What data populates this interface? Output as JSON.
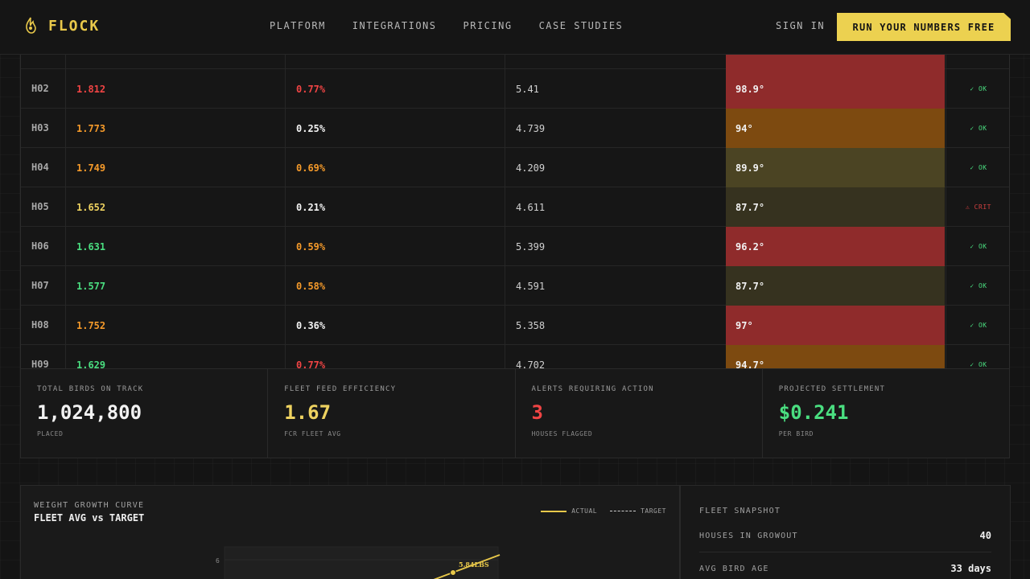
{
  "brand": {
    "name": "FLOCK",
    "accent": "#e8c84a"
  },
  "nav": {
    "links": [
      "PLATFORM",
      "INTEGRATIONS",
      "PRICING",
      "CASE STUDIES"
    ],
    "sign_in": "SIGN IN",
    "cta": "RUN YOUR NUMBERS FREE"
  },
  "houses": [
    {
      "id": "H02",
      "fcr": "1.812",
      "fcr_tone": "red",
      "mortality": "0.77%",
      "mort_tone": "red",
      "weight": "5.41",
      "temp": "98.9°",
      "temp_tone": "red",
      "status": "✓ OK",
      "status_tone": "ok"
    },
    {
      "id": "H03",
      "fcr": "1.773",
      "fcr_tone": "orange",
      "mortality": "0.25%",
      "mort_tone": "white",
      "weight": "4.739",
      "temp": "94°",
      "temp_tone": "orange",
      "status": "✓ OK",
      "status_tone": "ok"
    },
    {
      "id": "H04",
      "fcr": "1.749",
      "fcr_tone": "orange",
      "mortality": "0.69%",
      "mort_tone": "orange",
      "weight": "4.209",
      "temp": "89.9°",
      "temp_tone": "olive",
      "status": "✓ OK",
      "status_tone": "ok"
    },
    {
      "id": "H05",
      "fcr": "1.652",
      "fcr_tone": "yellow",
      "mortality": "0.21%",
      "mort_tone": "white",
      "weight": "4.611",
      "temp": "87.7°",
      "temp_tone": "dark",
      "status": "⚠ CRIT",
      "status_tone": "crit"
    },
    {
      "id": "H06",
      "fcr": "1.631",
      "fcr_tone": "green",
      "mortality": "0.59%",
      "mort_tone": "orange",
      "weight": "5.399",
      "temp": "96.2°",
      "temp_tone": "red",
      "status": "✓ OK",
      "status_tone": "ok"
    },
    {
      "id": "H07",
      "fcr": "1.577",
      "fcr_tone": "green",
      "mortality": "0.58%",
      "mort_tone": "orange",
      "weight": "4.591",
      "temp": "87.7°",
      "temp_tone": "dark",
      "status": "✓ OK",
      "status_tone": "ok"
    },
    {
      "id": "H08",
      "fcr": "1.752",
      "fcr_tone": "orange",
      "mortality": "0.36%",
      "mort_tone": "white",
      "weight": "5.358",
      "temp": "97°",
      "temp_tone": "red",
      "status": "✓ OK",
      "status_tone": "ok"
    },
    {
      "id": "H09",
      "fcr": "1.629",
      "fcr_tone": "green",
      "mortality": "0.77%",
      "mort_tone": "red",
      "weight": "4.702",
      "temp": "94.7°",
      "temp_tone": "orange",
      "status": "✓ OK",
      "status_tone": "ok"
    }
  ],
  "stats": [
    {
      "label": "TOTAL BIRDS ON TRACK",
      "value": "1,024,800",
      "sub": "PLACED",
      "color": "#f2f2f2"
    },
    {
      "label": "FLEET FEED EFFICIENCY",
      "value": "1.67",
      "sub": "FCR FLEET AVG",
      "color": "#eed260"
    },
    {
      "label": "ALERTS REQUIRING ACTION",
      "value": "3",
      "sub": "HOUSES FLAGGED",
      "color": "#f04444"
    },
    {
      "label": "PROJECTED SETTLEMENT",
      "value": "$0.241",
      "sub": "PER BIRD",
      "color": "#4ade80"
    }
  ],
  "chart": {
    "kicker": "WEIGHT GROWTH CURVE",
    "title": "FLEET AVG vs TARGET",
    "legend_actual": "ACTUAL",
    "legend_target": "TARGET",
    "y_tick": "6",
    "point_label": "5.84LBS"
  },
  "snapshot": {
    "title": "FLEET SNAPSHOT",
    "rows": [
      {
        "label": "HOUSES IN GROWOUT",
        "value": "40"
      },
      {
        "label": "AVG BIRD AGE",
        "value": "33 days"
      }
    ]
  },
  "chart_data": {
    "type": "line",
    "title": "FLEET AVG vs TARGET",
    "series": [
      {
        "name": "ACTUAL",
        "values": [
          5.84
        ]
      },
      {
        "name": "TARGET",
        "values": []
      }
    ],
    "y_ticks": [
      6
    ],
    "annotations": [
      "5.84LBS"
    ]
  }
}
